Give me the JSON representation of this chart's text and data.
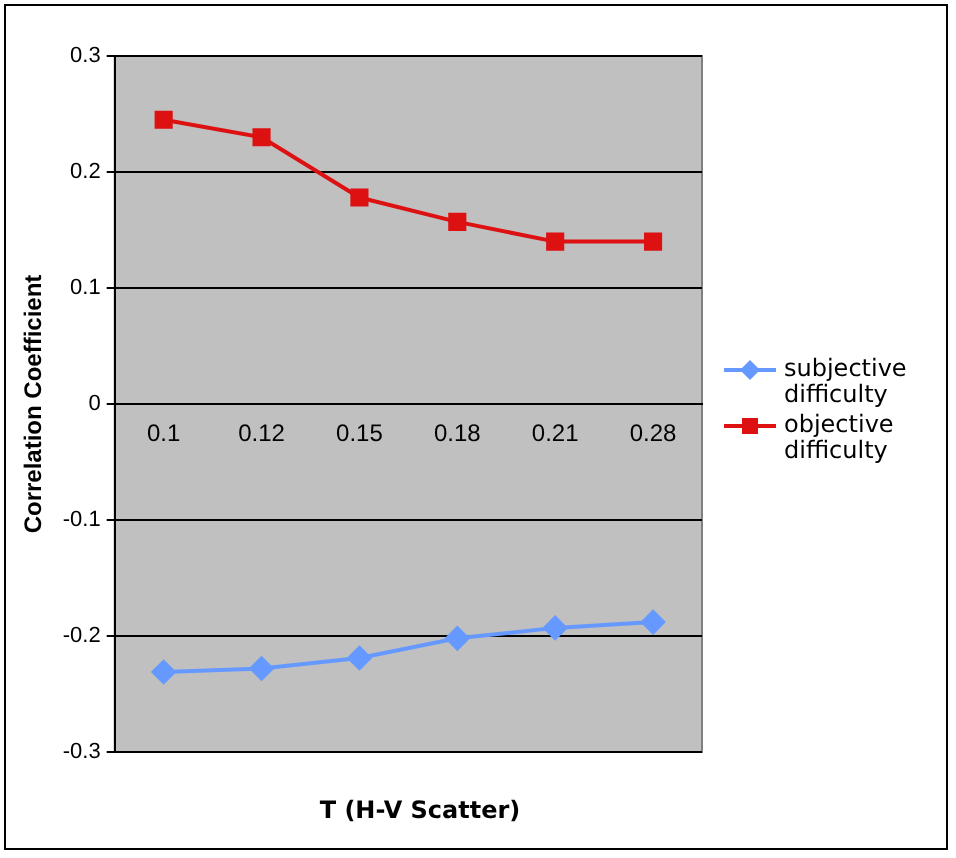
{
  "chart_data": {
    "type": "line",
    "xlabel": "T (H-V Scatter)",
    "ylabel": "Correlation Coefficient",
    "categories": [
      "0.1",
      "0.12",
      "0.15",
      "0.18",
      "0.21",
      "0.28"
    ],
    "series": [
      {
        "name": "subjective difficulty",
        "color": "#6699ff",
        "marker": "diamond",
        "values": [
          -0.231,
          -0.228,
          -0.219,
          -0.202,
          -0.193,
          -0.188
        ]
      },
      {
        "name": "objective difficulty",
        "color": "#dd1111",
        "marker": "square",
        "values": [
          0.245,
          0.23,
          0.178,
          0.157,
          0.14,
          0.14
        ]
      }
    ],
    "ylim": [
      -0.3,
      0.3
    ],
    "yticks": [
      -0.3,
      -0.2,
      -0.1,
      0,
      0.1,
      0.2,
      0.3
    ],
    "grid": "y",
    "legend": "right",
    "line_style": "solid"
  }
}
